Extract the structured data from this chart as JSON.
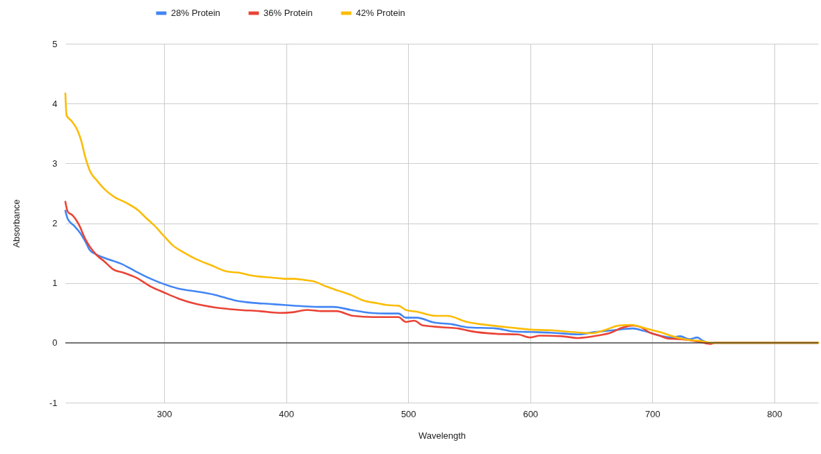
{
  "chart_data": {
    "type": "line",
    "xlabel": "Wavelength",
    "ylabel": "Absorbance",
    "xlim": [
      219,
      836
    ],
    "ylim": [
      -1,
      5
    ],
    "xticks": [
      300,
      400,
      500,
      600,
      700,
      800
    ],
    "yticks": [
      -1,
      0,
      1,
      2,
      3,
      4,
      5
    ],
    "grid": true,
    "legend": "top",
    "line_style": "solid",
    "marker": "none",
    "ref_lines": [
      {
        "axis": "y",
        "value": 0,
        "color": "#333333"
      }
    ],
    "series": [
      {
        "name": "28% Protein",
        "color": "#4285f4",
        "x": [
          219,
          221,
          226,
          231,
          236,
          239,
          244,
          251,
          265,
          277,
          289,
          300,
          313,
          326,
          342,
          358,
          372,
          386,
          400,
          415,
          427,
          439,
          453,
          469,
          483,
          492,
          498,
          507,
          521,
          536,
          548,
          572,
          586,
          601,
          617,
          639,
          653,
          668,
          684,
          693,
          706,
          715,
          723,
          730,
          737,
          741,
          747,
          760,
          836
        ],
        "values": [
          2.21,
          2.07,
          1.96,
          1.84,
          1.67,
          1.55,
          1.48,
          1.42,
          1.32,
          1.19,
          1.07,
          0.98,
          0.9,
          0.86,
          0.8,
          0.71,
          0.67,
          0.65,
          0.63,
          0.61,
          0.6,
          0.6,
          0.55,
          0.5,
          0.49,
          0.49,
          0.42,
          0.42,
          0.34,
          0.31,
          0.26,
          0.24,
          0.19,
          0.18,
          0.17,
          0.14,
          0.18,
          0.21,
          0.24,
          0.2,
          0.12,
          0.09,
          0.11,
          0.06,
          0.09,
          0.04,
          0,
          0,
          0
        ]
      },
      {
        "name": "36% Protein",
        "color": "#ea4335",
        "x": [
          219,
          221,
          225,
          230,
          235,
          239,
          245,
          251,
          258,
          267,
          277,
          289,
          300,
          313,
          326,
          342,
          362,
          378,
          394,
          405,
          417,
          429,
          441,
          455,
          471,
          483,
          492,
          498,
          505,
          512,
          528,
          541,
          550,
          572,
          590,
          600,
          608,
          626,
          639,
          655,
          666,
          675,
          684,
          691,
          698,
          706,
          713,
          724,
          738,
          748,
          751,
          836
        ],
        "values": [
          2.36,
          2.19,
          2.13,
          1.98,
          1.75,
          1.61,
          1.46,
          1.36,
          1.23,
          1.17,
          1.09,
          0.94,
          0.84,
          0.73,
          0.65,
          0.59,
          0.55,
          0.53,
          0.5,
          0.51,
          0.55,
          0.53,
          0.53,
          0.45,
          0.43,
          0.43,
          0.43,
          0.35,
          0.37,
          0.29,
          0.26,
          0.24,
          0.2,
          0.15,
          0.14,
          0.09,
          0.12,
          0.11,
          0.08,
          0.12,
          0.17,
          0.25,
          0.29,
          0.26,
          0.17,
          0.12,
          0.07,
          0.06,
          0.02,
          -0.02,
          0,
          0
        ]
      },
      {
        "name": "42% Protein",
        "color": "#fbbc04",
        "x": [
          219,
          220,
          224,
          229,
          232,
          235,
          239,
          245,
          251,
          259,
          269,
          279,
          285,
          292,
          300,
          307,
          317,
          326,
          338,
          352,
          362,
          370,
          382,
          394,
          400,
          406,
          415,
          422,
          433,
          443,
          453,
          463,
          475,
          483,
          492,
          498,
          507,
          523,
          532,
          548,
          568,
          586,
          601,
          617,
          635,
          651,
          662,
          673,
          683,
          693,
          706,
          720,
          729,
          740,
          749,
          836
        ],
        "values": [
          4.17,
          3.8,
          3.71,
          3.55,
          3.38,
          3.13,
          2.88,
          2.71,
          2.57,
          2.44,
          2.34,
          2.21,
          2.09,
          1.96,
          1.78,
          1.63,
          1.5,
          1.4,
          1.3,
          1.19,
          1.17,
          1.13,
          1.1,
          1.08,
          1.07,
          1.07,
          1.05,
          1.03,
          0.94,
          0.87,
          0.8,
          0.71,
          0.66,
          0.63,
          0.62,
          0.55,
          0.52,
          0.45,
          0.45,
          0.35,
          0.29,
          0.25,
          0.22,
          0.21,
          0.18,
          0.16,
          0.22,
          0.29,
          0.3,
          0.25,
          0.18,
          0.09,
          0.05,
          0.03,
          0,
          0
        ]
      }
    ]
  }
}
